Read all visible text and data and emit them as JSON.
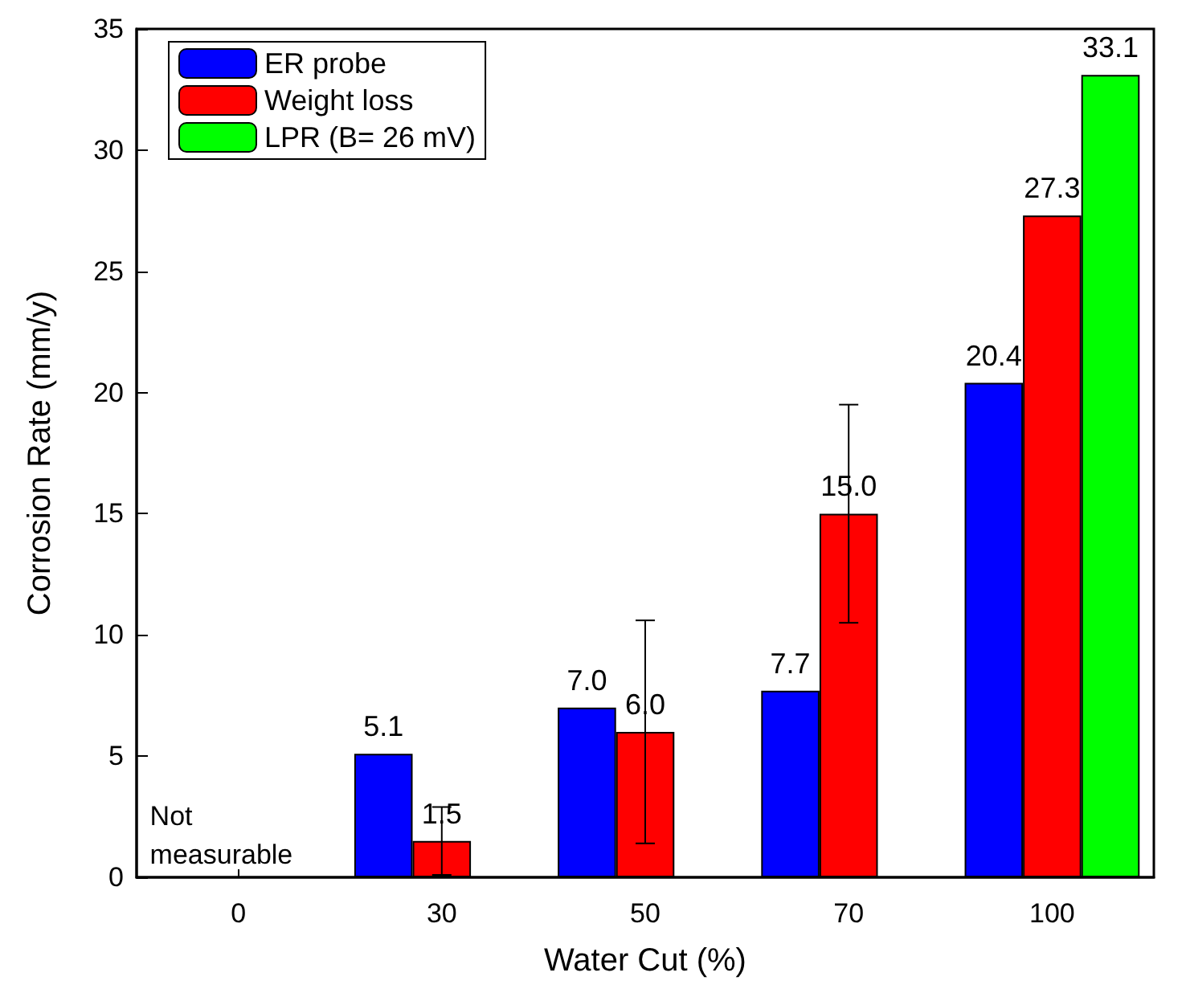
{
  "chart_data": {
    "type": "bar",
    "xlabel": "Water Cut (%)",
    "ylabel": "Corrosion Rate (mm/y)",
    "categories": [
      "0",
      "30",
      "50",
      "70",
      "100"
    ],
    "series": [
      {
        "name": "ER probe",
        "color": "#0000ff",
        "values": [
          null,
          5.1,
          7.0,
          7.7,
          20.4
        ],
        "value_labels": [
          null,
          "5.1",
          "7.0",
          "7.7",
          "20.4"
        ]
      },
      {
        "name": "Weight loss",
        "color": "#ff0000",
        "values": [
          null,
          1.5,
          6.0,
          15.0,
          27.3
        ],
        "value_labels": [
          null,
          "1.5",
          "6.0",
          "15.0",
          "27.3"
        ],
        "errors": [
          null,
          1.4,
          4.6,
          4.5,
          null
        ]
      },
      {
        "name": "LPR (B= 26 mV)",
        "color": "#00ff00",
        "values": [
          null,
          null,
          null,
          null,
          33.1
        ],
        "value_labels": [
          null,
          null,
          null,
          null,
          "33.1"
        ]
      }
    ],
    "ylim": [
      0,
      35
    ],
    "yticks": [
      0,
      5,
      10,
      15,
      20,
      25,
      30,
      35
    ],
    "annotations": [
      "Not\nmeasurable"
    ],
    "grid": false,
    "legend": "top left"
  }
}
